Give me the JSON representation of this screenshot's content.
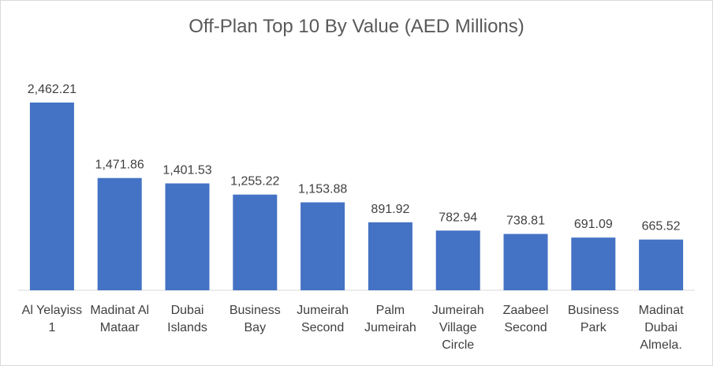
{
  "chart_data": {
    "type": "bar",
    "title": "Off-Plan Top 10 By Value (AED Millions)",
    "xlabel": "",
    "ylabel": "",
    "ylim": [
      0,
      2600
    ],
    "grid": false,
    "legend": "none",
    "bar_color": "#4472C4",
    "categories": [
      [
        "Al Yelayiss",
        "1"
      ],
      [
        "Madinat Al",
        "Mataar"
      ],
      [
        "Dubai",
        "Islands"
      ],
      [
        "Business",
        "Bay"
      ],
      [
        "Jumeirah",
        "Second"
      ],
      [
        "Palm",
        "Jumeirah"
      ],
      [
        "Jumeirah",
        "Village",
        "Circle"
      ],
      [
        "Zaabeel",
        "Second"
      ],
      [
        "Business",
        "Park"
      ],
      [
        "Madinat",
        "Dubai",
        "Almela."
      ]
    ],
    "values": [
      2462.21,
      1471.86,
      1401.53,
      1255.22,
      1153.88,
      891.92,
      782.94,
      738.81,
      691.09,
      665.52
    ],
    "value_labels": [
      "2,462.21",
      "1,471.86",
      "1,401.53",
      "1,255.22",
      "1,153.88",
      "891.92",
      "782.94",
      "738.81",
      "691.09",
      "665.52"
    ]
  }
}
